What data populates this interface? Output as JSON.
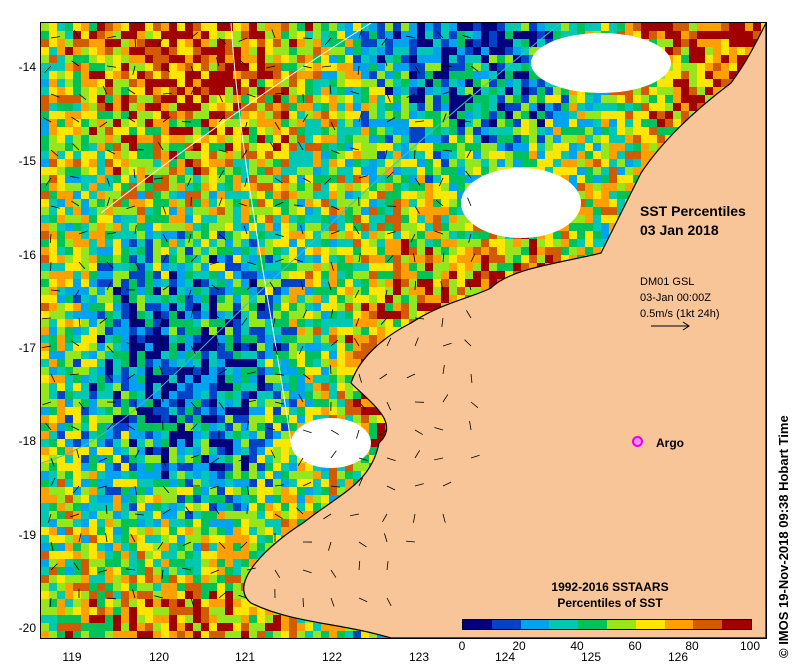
{
  "map": {
    "title_line1": "SST Percentiles",
    "title_line2": "03 Jan 2018",
    "wind_model": "DM01 GSL",
    "wind_time": "03-Jan 00:00Z",
    "wind_scale": "0.5m/s (1kt 24h)",
    "argo_label": "Argo",
    "lat_labels": [
      "-14",
      "-15",
      "-16",
      "-17",
      "-18",
      "-19",
      "-20"
    ],
    "lon_labels": [
      "119",
      "120",
      "121",
      "122",
      "123",
      "124",
      "125",
      "126"
    ]
  },
  "legend": {
    "title_line1": "1992-2016 SSTAARS",
    "title_line2": "Percentiles of SST",
    "tick_labels": [
      "0",
      "20",
      "40",
      "60",
      "80",
      "100"
    ],
    "colors": [
      "#00007f",
      "#0042c8",
      "#00a4ee",
      "#00c8b4",
      "#00c25a",
      "#96e61e",
      "#ffe600",
      "#ffa000",
      "#d25a00",
      "#a00000"
    ]
  },
  "credit": "© IMOS 19-Nov-2018 09:38 Hobart Time"
}
